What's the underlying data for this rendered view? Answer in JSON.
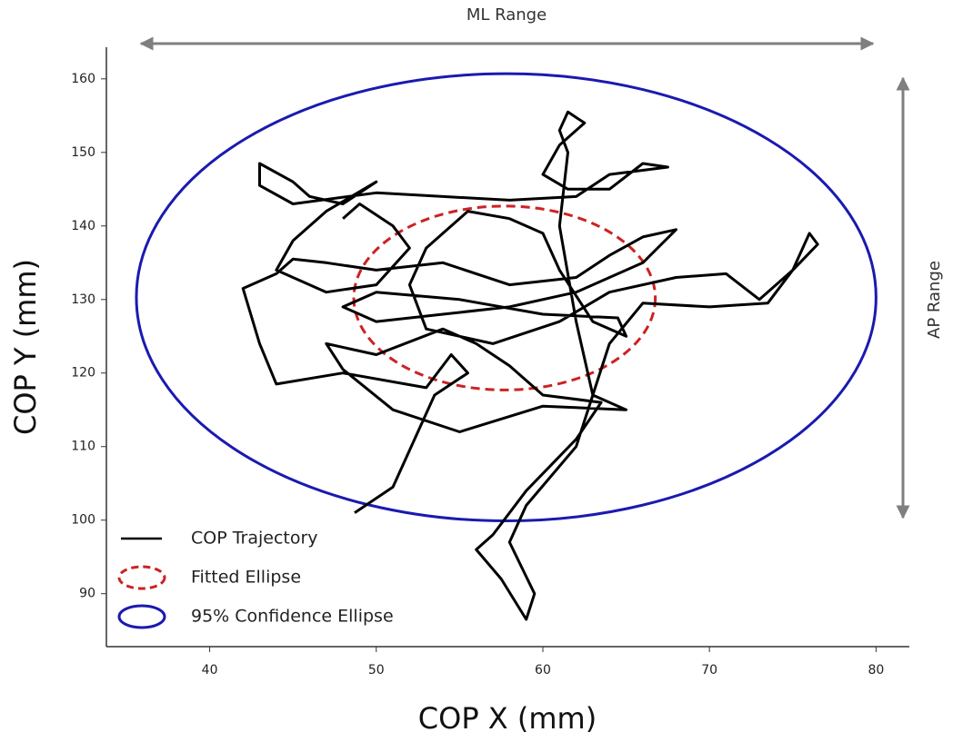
{
  "chart_data": {
    "type": "line",
    "x_label": "COP X (mm)",
    "y_label": "COP Y (mm)",
    "annotations": [
      "ML Range",
      "AP Range"
    ],
    "xlim": [
      33.8,
      82
    ],
    "ylim": [
      82.8,
      164.3
    ],
    "xticks": [
      40,
      50,
      60,
      70,
      80
    ],
    "yticks": [
      90,
      100,
      110,
      120,
      130,
      140,
      150,
      160
    ],
    "legend": "lower left",
    "x": [
      48.7,
      51,
      53.5,
      55.5,
      54.5,
      53,
      48,
      44,
      43,
      42,
      44,
      45,
      47,
      50,
      54,
      58,
      62,
      64,
      66,
      68,
      66,
      62,
      58,
      54,
      50,
      48,
      50,
      55,
      60,
      64.5,
      65,
      63,
      61,
      60,
      58,
      55.5,
      53,
      52,
      53,
      57,
      61,
      64,
      68,
      71,
      73,
      75,
      76,
      76.5,
      75,
      73.5,
      70,
      66,
      64,
      63,
      65,
      60,
      55,
      51,
      48,
      47,
      50,
      54,
      56,
      58,
      60,
      63.5,
      62,
      59,
      57,
      56,
      57.5,
      59,
      59.5,
      58,
      59,
      62,
      63,
      62,
      61,
      61.5,
      61,
      61.5,
      62.5,
      61,
      60,
      61.5,
      64,
      66,
      67.5,
      64,
      62,
      58,
      54,
      50,
      45,
      43,
      43,
      45,
      46,
      48,
      50,
      47,
      45,
      44,
      47,
      50,
      52,
      51,
      49,
      48
    ],
    "series": [
      {
        "name": "COP Trajectory",
        "color": "#000000",
        "values": [
          101,
          104.5,
          117,
          120,
          122.5,
          118,
          120,
          118.5,
          124,
          131.5,
          133.5,
          135.5,
          135,
          134,
          135,
          132,
          133,
          136,
          138.5,
          139.5,
          135,
          131,
          129,
          128,
          127,
          129,
          131,
          130,
          128,
          127.5,
          125,
          127,
          134,
          139,
          141,
          142,
          137,
          132,
          126,
          124,
          127,
          131,
          133,
          133.5,
          130,
          134,
          139,
          137.5,
          134,
          129.5,
          129,
          129.5,
          124,
          117,
          115,
          115.5,
          112,
          115,
          120.5,
          124,
          122.5,
          126,
          124,
          121,
          117,
          116,
          111,
          104,
          98,
          96,
          92,
          86.5,
          90,
          97,
          102,
          110,
          117,
          127,
          140,
          150,
          153,
          155.5,
          154,
          151,
          147,
          145,
          145,
          148.5,
          148,
          147,
          144,
          143.5,
          144,
          144.5,
          143,
          145.5,
          148.5,
          146,
          144,
          143,
          146,
          142,
          138,
          134,
          131,
          132,
          137,
          140,
          143,
          141
        ]
      }
    ],
    "ellipses": [
      {
        "name": "Fitted Ellipse",
        "color": "#cc2222",
        "dashed": true,
        "center": [
          57.7,
          130.2
        ],
        "radii": [
          9.05,
          12.5
        ]
      },
      {
        "name": "95% Confidence Ellipse",
        "color": "#1a1ab0",
        "dashed": false,
        "center": [
          57.8,
          130.3
        ],
        "radii": [
          22.2,
          30.4
        ]
      }
    ]
  }
}
